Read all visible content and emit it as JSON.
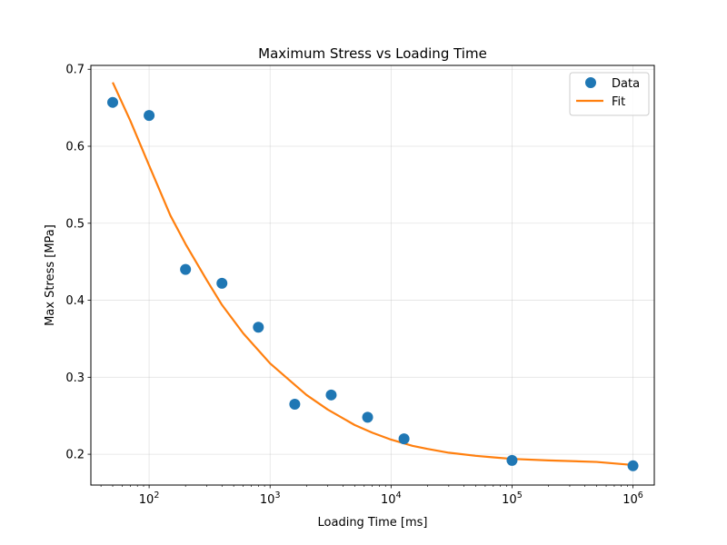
{
  "chart_data": {
    "type": "scatter",
    "title": "Maximum Stress vs Loading Time",
    "xlabel": "Loading Time [ms]",
    "ylabel": "Max Stress [MPa]",
    "xscale": "log",
    "xlim": [
      33,
      1500000
    ],
    "ylim": [
      0.16,
      0.705
    ],
    "grid": true,
    "legend_position": "top-right",
    "x_ticks": [
      {
        "value": 100,
        "base": "10",
        "exp": "2"
      },
      {
        "value": 1000,
        "base": "10",
        "exp": "3"
      },
      {
        "value": 10000,
        "base": "10",
        "exp": "4"
      },
      {
        "value": 100000,
        "base": "10",
        "exp": "5"
      },
      {
        "value": 1000000,
        "base": "10",
        "exp": "6"
      }
    ],
    "y_ticks": [
      {
        "value": 0.2,
        "label": "0.2"
      },
      {
        "value": 0.3,
        "label": "0.3"
      },
      {
        "value": 0.4,
        "label": "0.4"
      },
      {
        "value": 0.5,
        "label": "0.5"
      },
      {
        "value": 0.6,
        "label": "0.6"
      },
      {
        "value": 0.7,
        "label": "0.7"
      }
    ],
    "series": [
      {
        "name": "Data",
        "kind": "scatter",
        "color": "#1f77b4",
        "x": [
          50,
          100,
          200,
          400,
          800,
          1600,
          3200,
          6400,
          12800,
          100000,
          1000000
        ],
        "y": [
          0.657,
          0.64,
          0.44,
          0.422,
          0.365,
          0.265,
          0.277,
          0.248,
          0.22,
          0.192,
          0.185
        ]
      },
      {
        "name": "Fit",
        "kind": "line",
        "color": "#ff7f0e",
        "x": [
          50,
          70,
          100,
          150,
          200,
          300,
          400,
          600,
          800,
          1000,
          1500,
          2000,
          3000,
          5000,
          7000,
          10000,
          15000,
          20000,
          30000,
          50000,
          70000,
          100000,
          200000,
          500000,
          1000000
        ],
        "y": [
          0.683,
          0.633,
          0.575,
          0.51,
          0.473,
          0.426,
          0.394,
          0.357,
          0.335,
          0.318,
          0.294,
          0.277,
          0.258,
          0.238,
          0.228,
          0.219,
          0.211,
          0.207,
          0.202,
          0.198,
          0.196,
          0.194,
          0.192,
          0.19,
          0.186
        ]
      }
    ]
  }
}
